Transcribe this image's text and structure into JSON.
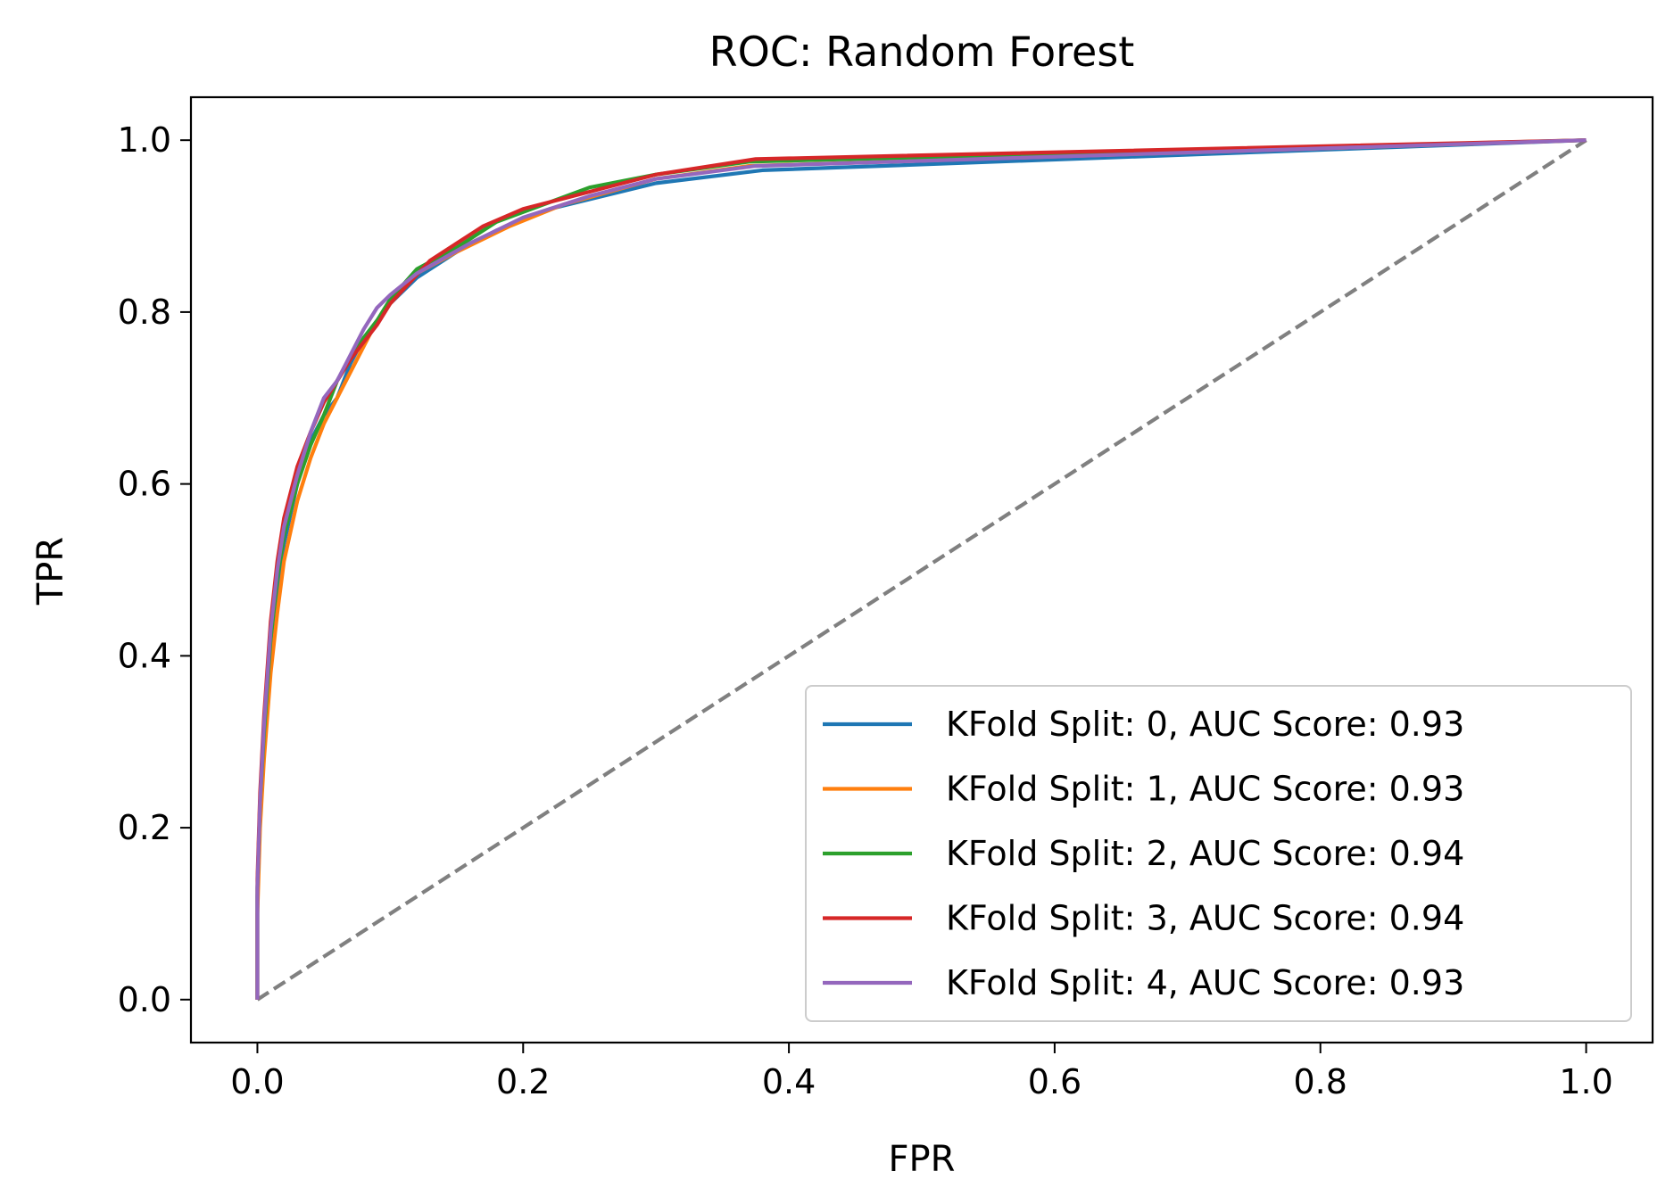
{
  "chart_data": {
    "type": "line",
    "title": "ROC: Random Forest",
    "xlabel": "FPR",
    "ylabel": "TPR",
    "xlim": [
      -0.05,
      1.05
    ],
    "ylim": [
      -0.05,
      1.05
    ],
    "xticks": [
      0.0,
      0.2,
      0.4,
      0.6,
      0.8,
      1.0
    ],
    "yticks": [
      0.0,
      0.2,
      0.4,
      0.6,
      0.8,
      1.0
    ],
    "xtick_labels": [
      "0.0",
      "0.2",
      "0.4",
      "0.6",
      "0.8",
      "1.0"
    ],
    "ytick_labels": [
      "0.0",
      "0.2",
      "0.4",
      "0.6",
      "0.8",
      "1.0"
    ],
    "legend": "lower right",
    "grid": false,
    "series": [
      {
        "name": "KFold Split: 0, AUC Score: 0.93",
        "color": "#1f77b4",
        "x": [
          0.0,
          0.0,
          0.002,
          0.005,
          0.01,
          0.015,
          0.02,
          0.03,
          0.04,
          0.05,
          0.06,
          0.07,
          0.08,
          0.09,
          0.1,
          0.12,
          0.15,
          0.18,
          0.22,
          0.3,
          0.38,
          1.0
        ],
        "y": [
          0.0,
          0.12,
          0.22,
          0.3,
          0.4,
          0.47,
          0.53,
          0.6,
          0.65,
          0.68,
          0.7,
          0.74,
          0.77,
          0.79,
          0.81,
          0.84,
          0.87,
          0.895,
          0.92,
          0.95,
          0.965,
          1.0
        ]
      },
      {
        "name": "KFold Split: 1, AUC Score: 0.93",
        "color": "#ff7f0e",
        "x": [
          0.0,
          0.0,
          0.002,
          0.005,
          0.01,
          0.015,
          0.02,
          0.03,
          0.04,
          0.05,
          0.06,
          0.07,
          0.08,
          0.09,
          0.1,
          0.12,
          0.15,
          0.19,
          0.23,
          0.3,
          0.37,
          1.0
        ],
        "y": [
          0.0,
          0.1,
          0.2,
          0.28,
          0.38,
          0.45,
          0.51,
          0.58,
          0.63,
          0.67,
          0.7,
          0.73,
          0.76,
          0.79,
          0.81,
          0.845,
          0.87,
          0.9,
          0.925,
          0.955,
          0.97,
          1.0
        ]
      },
      {
        "name": "KFold Split: 2, AUC Score: 0.94",
        "color": "#2ca02c",
        "x": [
          0.0,
          0.0,
          0.002,
          0.005,
          0.01,
          0.015,
          0.02,
          0.03,
          0.04,
          0.05,
          0.06,
          0.07,
          0.08,
          0.09,
          0.1,
          0.12,
          0.15,
          0.18,
          0.25,
          0.3,
          0.37,
          1.0
        ],
        "y": [
          0.0,
          0.13,
          0.23,
          0.31,
          0.42,
          0.49,
          0.54,
          0.6,
          0.645,
          0.68,
          0.72,
          0.745,
          0.77,
          0.79,
          0.815,
          0.85,
          0.875,
          0.905,
          0.945,
          0.96,
          0.975,
          1.0
        ]
      },
      {
        "name": "KFold Split: 3, AUC Score: 0.94",
        "color": "#d62728",
        "x": [
          0.0,
          0.0,
          0.002,
          0.005,
          0.01,
          0.015,
          0.02,
          0.03,
          0.04,
          0.05,
          0.06,
          0.07,
          0.08,
          0.09,
          0.1,
          0.13,
          0.17,
          0.2,
          0.25,
          0.3,
          0.375,
          1.0
        ],
        "y": [
          0.0,
          0.14,
          0.24,
          0.33,
          0.44,
          0.51,
          0.56,
          0.62,
          0.66,
          0.695,
          0.72,
          0.745,
          0.765,
          0.785,
          0.81,
          0.86,
          0.9,
          0.92,
          0.94,
          0.96,
          0.978,
          1.0
        ]
      },
      {
        "name": "KFold Split: 4, AUC Score: 0.93",
        "color": "#9467bd",
        "x": [
          0.0,
          0.0,
          0.002,
          0.005,
          0.01,
          0.015,
          0.02,
          0.03,
          0.04,
          0.05,
          0.06,
          0.07,
          0.08,
          0.09,
          0.1,
          0.12,
          0.16,
          0.2,
          0.25,
          0.3,
          0.375,
          1.0
        ],
        "y": [
          0.0,
          0.13,
          0.23,
          0.32,
          0.43,
          0.5,
          0.55,
          0.61,
          0.66,
          0.7,
          0.72,
          0.75,
          0.78,
          0.805,
          0.82,
          0.845,
          0.88,
          0.91,
          0.935,
          0.955,
          0.97,
          1.0
        ]
      }
    ],
    "reference_line": {
      "x": [
        0.0,
        1.0
      ],
      "y": [
        0.0,
        1.0
      ],
      "color": "#808080",
      "style": "dashed"
    }
  }
}
